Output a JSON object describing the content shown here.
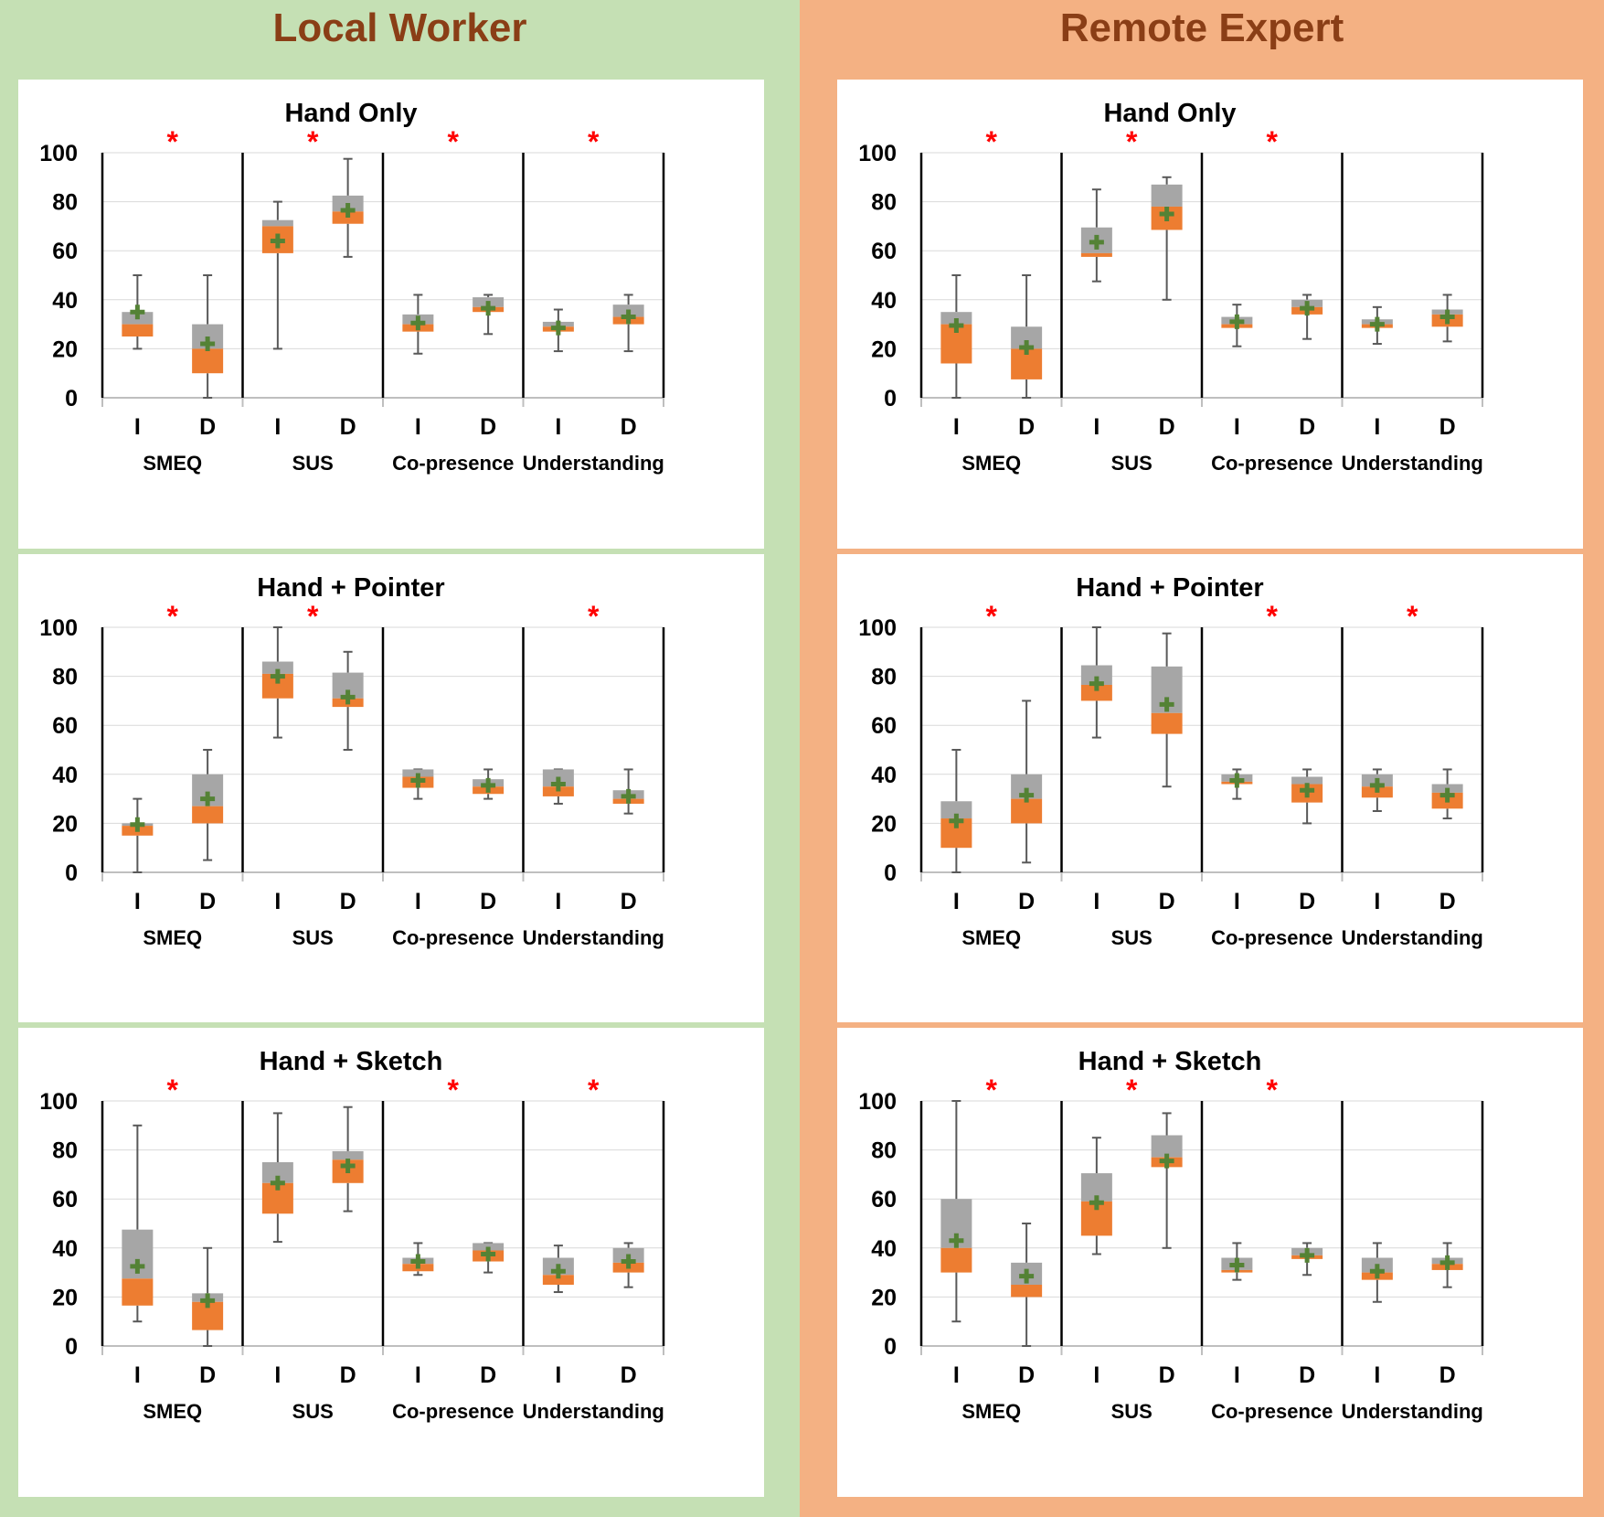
{
  "panels": [
    {
      "title": "Local Worker",
      "bg_color": "#c5e0b4"
    },
    {
      "title": "Remote Expert",
      "bg_color": "#f4b183"
    }
  ],
  "colors": {
    "upper_box": "#a6a6a6",
    "lower_box": "#ed7d31",
    "mean_marker": "#548235",
    "significance": "#ff0000",
    "whisker": "#595959"
  },
  "chart_data": [
    {
      "type": "box",
      "panel": "Local Worker",
      "title": "Hand Only",
      "ylim": [
        0,
        100
      ],
      "yticks": [
        0,
        20,
        40,
        60,
        80,
        100
      ],
      "groups": [
        "SMEQ",
        "SUS",
        "Co-presence",
        "Understanding"
      ],
      "conditions": [
        "I",
        "D"
      ],
      "significant": [
        true,
        true,
        true,
        true
      ],
      "boxes": [
        {
          "group": "SMEQ",
          "condition": "I",
          "min": 20,
          "q1": 25,
          "median": 30,
          "q3": 35,
          "max": 50,
          "mean": 35
        },
        {
          "group": "SMEQ",
          "condition": "D",
          "min": 0,
          "q1": 10,
          "median": 20,
          "q3": 30,
          "max": 50,
          "mean": 22
        },
        {
          "group": "SUS",
          "condition": "I",
          "min": 20,
          "q1": 59,
          "median": 70,
          "q3": 72.5,
          "max": 80,
          "mean": 64
        },
        {
          "group": "SUS",
          "condition": "D",
          "min": 57.5,
          "q1": 71,
          "median": 76,
          "q3": 82.5,
          "max": 97.5,
          "mean": 76.5
        },
        {
          "group": "Co-presence",
          "condition": "I",
          "min": 18,
          "q1": 27,
          "median": 30,
          "q3": 34,
          "max": 42,
          "mean": 30.5
        },
        {
          "group": "Co-presence",
          "condition": "D",
          "min": 26,
          "q1": 35,
          "median": 37,
          "q3": 41,
          "max": 42,
          "mean": 36.5
        },
        {
          "group": "Understanding",
          "condition": "I",
          "min": 19,
          "q1": 27,
          "median": 29,
          "q3": 31,
          "max": 36,
          "mean": 28.5
        },
        {
          "group": "Understanding",
          "condition": "D",
          "min": 19,
          "q1": 30,
          "median": 33,
          "q3": 38,
          "max": 42,
          "mean": 33
        }
      ]
    },
    {
      "type": "box",
      "panel": "Local Worker",
      "title": "Hand + Pointer",
      "ylim": [
        0,
        100
      ],
      "yticks": [
        0,
        20,
        40,
        60,
        80,
        100
      ],
      "groups": [
        "SMEQ",
        "SUS",
        "Co-presence",
        "Understanding"
      ],
      "conditions": [
        "I",
        "D"
      ],
      "significant": [
        true,
        true,
        false,
        true
      ],
      "boxes": [
        {
          "group": "SMEQ",
          "condition": "I",
          "min": 0,
          "q1": 15,
          "median": 19,
          "q3": 20,
          "max": 30,
          "mean": 19.5
        },
        {
          "group": "SMEQ",
          "condition": "D",
          "min": 5,
          "q1": 20,
          "median": 27,
          "q3": 40,
          "max": 50,
          "mean": 30
        },
        {
          "group": "SUS",
          "condition": "I",
          "min": 55,
          "q1": 71,
          "median": 81,
          "q3": 86,
          "max": 100,
          "mean": 80
        },
        {
          "group": "SUS",
          "condition": "D",
          "min": 50,
          "q1": 67.5,
          "median": 71,
          "q3": 81.5,
          "max": 90,
          "mean": 71.5
        },
        {
          "group": "Co-presence",
          "condition": "I",
          "min": 30,
          "q1": 34.5,
          "median": 39,
          "q3": 42,
          "max": 42,
          "mean": 37.5
        },
        {
          "group": "Co-presence",
          "condition": "D",
          "min": 30,
          "q1": 32,
          "median": 35,
          "q3": 38,
          "max": 42,
          "mean": 35.5
        },
        {
          "group": "Understanding",
          "condition": "I",
          "min": 28,
          "q1": 31,
          "median": 35,
          "q3": 42,
          "max": 42,
          "mean": 36
        },
        {
          "group": "Understanding",
          "condition": "D",
          "min": 24,
          "q1": 28,
          "median": 30,
          "q3": 33.5,
          "max": 42,
          "mean": 31
        }
      ]
    },
    {
      "type": "box",
      "panel": "Local Worker",
      "title": "Hand + Sketch",
      "ylim": [
        0,
        100
      ],
      "yticks": [
        0,
        20,
        40,
        60,
        80,
        100
      ],
      "groups": [
        "SMEQ",
        "SUS",
        "Co-presence",
        "Understanding"
      ],
      "conditions": [
        "I",
        "D"
      ],
      "significant": [
        true,
        false,
        true,
        true
      ],
      "boxes": [
        {
          "group": "SMEQ",
          "condition": "I",
          "min": 10,
          "q1": 16.5,
          "median": 27.5,
          "q3": 47.5,
          "max": 90,
          "mean": 32.5
        },
        {
          "group": "SMEQ",
          "condition": "D",
          "min": 0,
          "q1": 6.5,
          "median": 18,
          "q3": 21.5,
          "max": 40,
          "mean": 18.5
        },
        {
          "group": "SUS",
          "condition": "I",
          "min": 42.5,
          "q1": 54,
          "median": 66.5,
          "q3": 75,
          "max": 95,
          "mean": 66.5
        },
        {
          "group": "SUS",
          "condition": "D",
          "min": 55,
          "q1": 66.5,
          "median": 76,
          "q3": 79.5,
          "max": 97.5,
          "mean": 73.5
        },
        {
          "group": "Co-presence",
          "condition": "I",
          "min": 29,
          "q1": 30.5,
          "median": 33.5,
          "q3": 36,
          "max": 42,
          "mean": 34.5
        },
        {
          "group": "Co-presence",
          "condition": "D",
          "min": 30,
          "q1": 34.5,
          "median": 39,
          "q3": 42,
          "max": 42,
          "mean": 37.5
        },
        {
          "group": "Understanding",
          "condition": "I",
          "min": 22,
          "q1": 25,
          "median": 29,
          "q3": 36,
          "max": 41,
          "mean": 30.5
        },
        {
          "group": "Understanding",
          "condition": "D",
          "min": 24,
          "q1": 30,
          "median": 34,
          "q3": 40,
          "max": 42,
          "mean": 34.5
        }
      ]
    },
    {
      "type": "box",
      "panel": "Remote Expert",
      "title": "Hand Only",
      "ylim": [
        0,
        100
      ],
      "yticks": [
        0,
        20,
        40,
        60,
        80,
        100
      ],
      "groups": [
        "SMEQ",
        "SUS",
        "Co-presence",
        "Understanding"
      ],
      "conditions": [
        "I",
        "D"
      ],
      "significant": [
        true,
        true,
        true,
        false
      ],
      "boxes": [
        {
          "group": "SMEQ",
          "condition": "I",
          "min": 0,
          "q1": 14,
          "median": 30,
          "q3": 35,
          "max": 50,
          "mean": 29.5
        },
        {
          "group": "SMEQ",
          "condition": "D",
          "min": 0,
          "q1": 7.5,
          "median": 20,
          "q3": 29,
          "max": 50,
          "mean": 20.5
        },
        {
          "group": "SUS",
          "condition": "I",
          "min": 47.5,
          "q1": 57.5,
          "median": 59,
          "q3": 69.5,
          "max": 85,
          "mean": 63.5
        },
        {
          "group": "SUS",
          "condition": "D",
          "min": 40,
          "q1": 68.5,
          "median": 78,
          "q3": 87,
          "max": 90,
          "mean": 75
        },
        {
          "group": "Co-presence",
          "condition": "I",
          "min": 21,
          "q1": 28.5,
          "median": 30,
          "q3": 33,
          "max": 38,
          "mean": 31
        },
        {
          "group": "Co-presence",
          "condition": "D",
          "min": 24,
          "q1": 34,
          "median": 37,
          "q3": 40,
          "max": 42,
          "mean": 36.5
        },
        {
          "group": "Understanding",
          "condition": "I",
          "min": 22,
          "q1": 28.5,
          "median": 30,
          "q3": 32,
          "max": 37,
          "mean": 30
        },
        {
          "group": "Understanding",
          "condition": "D",
          "min": 23,
          "q1": 29,
          "median": 34,
          "q3": 36,
          "max": 42,
          "mean": 33
        }
      ]
    },
    {
      "type": "box",
      "panel": "Remote Expert",
      "title": "Hand + Pointer",
      "ylim": [
        0,
        100
      ],
      "yticks": [
        0,
        20,
        40,
        60,
        80,
        100
      ],
      "groups": [
        "SMEQ",
        "SUS",
        "Co-presence",
        "Understanding"
      ],
      "conditions": [
        "I",
        "D"
      ],
      "significant": [
        true,
        false,
        true,
        true
      ],
      "boxes": [
        {
          "group": "SMEQ",
          "condition": "I",
          "min": 0,
          "q1": 10,
          "median": 22,
          "q3": 29,
          "max": 50,
          "mean": 21
        },
        {
          "group": "SMEQ",
          "condition": "D",
          "min": 4,
          "q1": 20,
          "median": 30,
          "q3": 40,
          "max": 70,
          "mean": 31.5
        },
        {
          "group": "SUS",
          "condition": "I",
          "min": 55,
          "q1": 70,
          "median": 76.5,
          "q3": 84.5,
          "max": 100,
          "mean": 77
        },
        {
          "group": "SUS",
          "condition": "D",
          "min": 35,
          "q1": 56.5,
          "median": 65,
          "q3": 84,
          "max": 97.5,
          "mean": 68.5
        },
        {
          "group": "Co-presence",
          "condition": "I",
          "min": 30,
          "q1": 36,
          "median": 37,
          "q3": 40,
          "max": 42,
          "mean": 37.5
        },
        {
          "group": "Co-presence",
          "condition": "D",
          "min": 20,
          "q1": 28.5,
          "median": 36,
          "q3": 39,
          "max": 42,
          "mean": 33.5
        },
        {
          "group": "Understanding",
          "condition": "I",
          "min": 25,
          "q1": 30.5,
          "median": 35,
          "q3": 40,
          "max": 42,
          "mean": 35.5
        },
        {
          "group": "Understanding",
          "condition": "D",
          "min": 22,
          "q1": 26,
          "median": 32.5,
          "q3": 36,
          "max": 42,
          "mean": 31.5
        }
      ]
    },
    {
      "type": "box",
      "panel": "Remote Expert",
      "title": "Hand + Sketch",
      "ylim": [
        0,
        100
      ],
      "yticks": [
        0,
        20,
        40,
        60,
        80,
        100
      ],
      "groups": [
        "SMEQ",
        "SUS",
        "Co-presence",
        "Understanding"
      ],
      "conditions": [
        "I",
        "D"
      ],
      "significant": [
        true,
        true,
        true,
        false
      ],
      "boxes": [
        {
          "group": "SMEQ",
          "condition": "I",
          "min": 10,
          "q1": 30,
          "median": 40,
          "q3": 60,
          "max": 100,
          "mean": 43
        },
        {
          "group": "SMEQ",
          "condition": "D",
          "min": 0,
          "q1": 20,
          "median": 25,
          "q3": 34,
          "max": 50,
          "mean": 28.5
        },
        {
          "group": "SUS",
          "condition": "I",
          "min": 37.5,
          "q1": 45,
          "median": 59,
          "q3": 70.5,
          "max": 85,
          "mean": 58.5
        },
        {
          "group": "SUS",
          "condition": "D",
          "min": 40,
          "q1": 73,
          "median": 77,
          "q3": 86,
          "max": 95,
          "mean": 75.5
        },
        {
          "group": "Co-presence",
          "condition": "I",
          "min": 27,
          "q1": 30,
          "median": 31,
          "q3": 36,
          "max": 42,
          "mean": 33
        },
        {
          "group": "Co-presence",
          "condition": "D",
          "min": 29,
          "q1": 35.5,
          "median": 37,
          "q3": 40,
          "max": 42,
          "mean": 37
        },
        {
          "group": "Understanding",
          "condition": "I",
          "min": 18,
          "q1": 27,
          "median": 30,
          "q3": 36,
          "max": 42,
          "mean": 30.5
        },
        {
          "group": "Understanding",
          "condition": "D",
          "min": 24,
          "q1": 31,
          "median": 33.5,
          "q3": 36,
          "max": 42,
          "mean": 34
        }
      ]
    }
  ]
}
